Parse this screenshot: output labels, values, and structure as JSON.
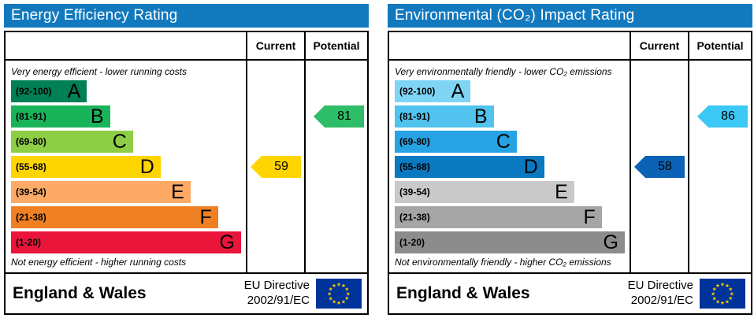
{
  "panels": [
    {
      "title": "Energy Efficiency Rating",
      "header_color": "#1279bf",
      "columns": {
        "current": "Current",
        "potential": "Potential"
      },
      "top_note": "Very energy efficient - lower running costs",
      "bottom_note": "Not energy efficient - higher running costs",
      "bands": [
        {
          "range": "(92-100)",
          "letter": "A",
          "color": "#008054",
          "width_pct": 33
        },
        {
          "range": "(81-91)",
          "letter": "B",
          "color": "#19b459",
          "width_pct": 43
        },
        {
          "range": "(69-80)",
          "letter": "C",
          "color": "#8dce46",
          "width_pct": 53
        },
        {
          "range": "(55-68)",
          "letter": "D",
          "color": "#ffd500",
          "width_pct": 65
        },
        {
          "range": "(39-54)",
          "letter": "E",
          "color": "#fcaa65",
          "width_pct": 78
        },
        {
          "range": "(21-38)",
          "letter": "F",
          "color": "#ef8023",
          "width_pct": 90
        },
        {
          "range": "(1-20)",
          "letter": "G",
          "color": "#e9153b",
          "width_pct": 100
        }
      ],
      "current": {
        "value": 59,
        "band_index": 3,
        "color": "#ffd500"
      },
      "potential": {
        "value": 81,
        "band_index": 1,
        "color": "#2ebd68"
      },
      "footer": {
        "region": "England & Wales",
        "directive_line1": "EU Directive",
        "directive_line2": "2002/91/EC"
      }
    },
    {
      "title": "Environmental (CO₂) Impact Rating",
      "header_color": "#1279bf",
      "columns": {
        "current": "Current",
        "potential": "Potential"
      },
      "top_note": "Very environmentally friendly - lower CO₂ emissions",
      "bottom_note": "Not environmentally friendly - higher CO₂ emissions",
      "bands": [
        {
          "range": "(92-100)",
          "letter": "A",
          "color": "#7fd4f5",
          "width_pct": 33
        },
        {
          "range": "(81-91)",
          "letter": "B",
          "color": "#51c3ee",
          "width_pct": 43
        },
        {
          "range": "(69-80)",
          "letter": "C",
          "color": "#27a3e4",
          "width_pct": 53
        },
        {
          "range": "(55-68)",
          "letter": "D",
          "color": "#0b79c0",
          "width_pct": 65
        },
        {
          "range": "(39-54)",
          "letter": "E",
          "color": "#c9c9c9",
          "width_pct": 78
        },
        {
          "range": "(21-38)",
          "letter": "F",
          "color": "#a5a5a5",
          "width_pct": 90
        },
        {
          "range": "(1-20)",
          "letter": "G",
          "color": "#8c8c8c",
          "width_pct": 100
        }
      ],
      "current": {
        "value": 58,
        "band_index": 3,
        "color": "#0c63b5"
      },
      "potential": {
        "value": 86,
        "band_index": 1,
        "color": "#3cc8f4"
      },
      "footer": {
        "region": "England & Wales",
        "directive_line1": "EU Directive",
        "directive_line2": "2002/91/EC"
      }
    }
  ],
  "chart_data": [
    {
      "type": "bar",
      "title": "Energy Efficiency Rating",
      "categories": [
        "A (92-100)",
        "B (81-91)",
        "C (69-80)",
        "D (55-68)",
        "E (39-54)",
        "F (21-38)",
        "G (1-20)"
      ],
      "band_colors": [
        "#008054",
        "#19b459",
        "#8dce46",
        "#ffd500",
        "#fcaa65",
        "#ef8023",
        "#e9153b"
      ],
      "current": 59,
      "current_band": "D",
      "potential": 81,
      "potential_band": "B",
      "scale": [
        1,
        100
      ],
      "annotations": [
        "Very energy efficient - lower running costs",
        "Not energy efficient - higher running costs"
      ],
      "footer": "England & Wales, EU Directive 2002/91/EC"
    },
    {
      "type": "bar",
      "title": "Environmental (CO₂) Impact Rating",
      "categories": [
        "A (92-100)",
        "B (81-91)",
        "C (69-80)",
        "D (55-68)",
        "E (39-54)",
        "F (21-38)",
        "G (1-20)"
      ],
      "band_colors": [
        "#7fd4f5",
        "#51c3ee",
        "#27a3e4",
        "#0b79c0",
        "#c9c9c9",
        "#a5a5a5",
        "#8c8c8c"
      ],
      "current": 58,
      "current_band": "D",
      "potential": 86,
      "potential_band": "B",
      "scale": [
        1,
        100
      ],
      "annotations": [
        "Very environmentally friendly - lower CO₂ emissions",
        "Not environmentally friendly - higher CO₂ emissions"
      ],
      "footer": "England & Wales, EU Directive 2002/91/EC"
    }
  ]
}
